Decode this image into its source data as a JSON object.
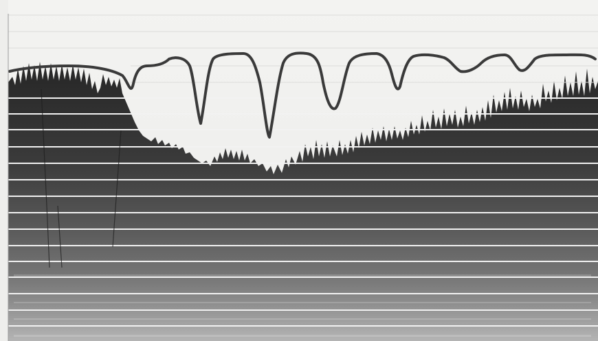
{
  "image": {
    "kind": "photographic-record",
    "colors": {
      "paper": "#f4f4f2",
      "dark_band": "#2a2a2a",
      "mid_band": "#4a4a4a",
      "grey_band": "#8a8a8a",
      "trace": "#3a3a3a",
      "time_line": "#f2f2f2"
    }
  }
}
